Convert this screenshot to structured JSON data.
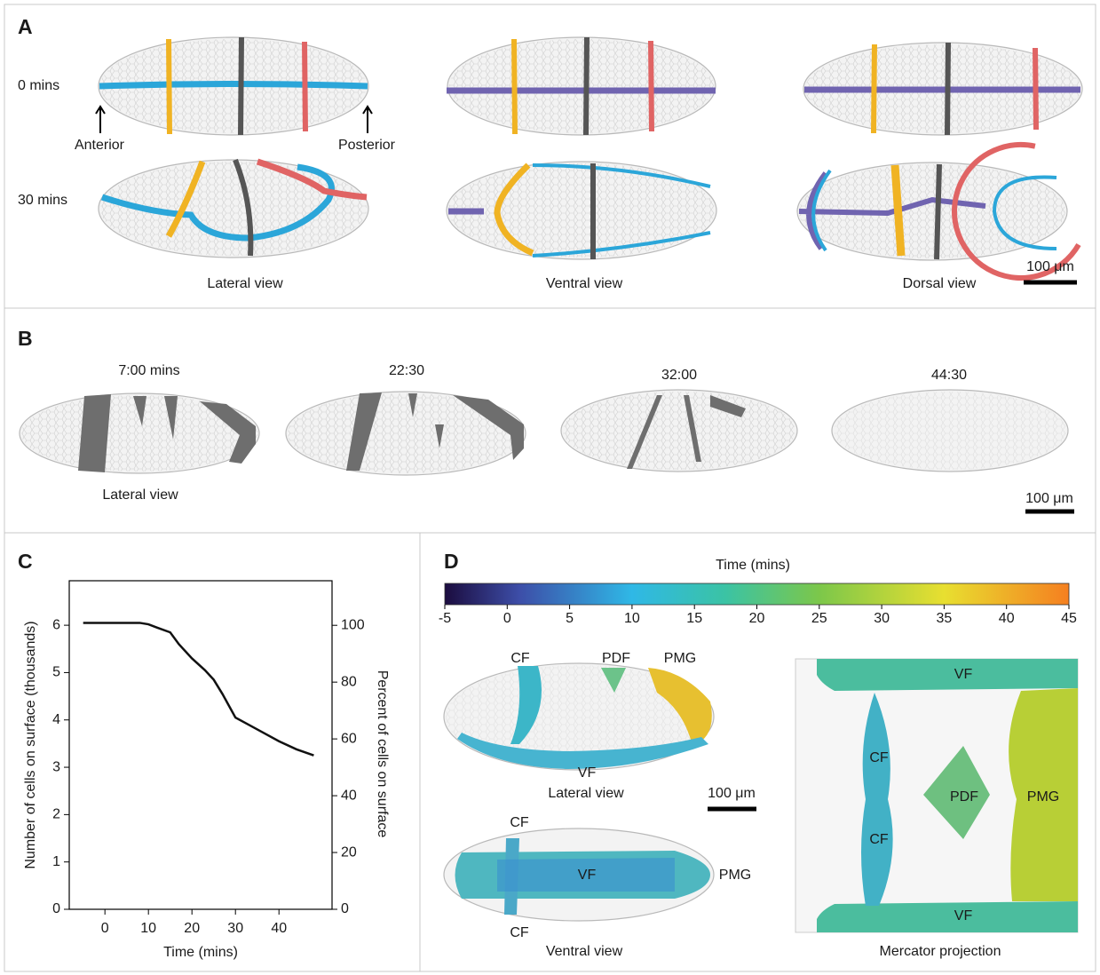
{
  "panel_a": {
    "letter": "A",
    "row_labels": [
      "0 mins",
      "30 mins"
    ],
    "anterior": "Anterior",
    "posterior": "Posterior",
    "views": [
      "Lateral view",
      "Ventral view",
      "Dorsal view"
    ],
    "scale_bar": "100 μm"
  },
  "panel_b": {
    "letter": "B",
    "times": [
      "7:00 mins",
      "22:30",
      "32:00",
      "44:30"
    ],
    "view": "Lateral view",
    "scale_bar": "100 μm"
  },
  "chart_data": {
    "type": "line",
    "panel_label": "C",
    "x": [
      -5,
      0,
      5,
      8,
      10,
      12,
      15,
      17,
      20,
      23,
      25,
      27,
      30,
      33,
      36,
      40,
      44,
      48
    ],
    "values": [
      6.05,
      6.05,
      6.05,
      6.05,
      6.02,
      5.95,
      5.85,
      5.6,
      5.3,
      5.05,
      4.85,
      4.55,
      4.05,
      3.9,
      3.75,
      3.55,
      3.38,
      3.25
    ],
    "color": "#111111",
    "xlim": [
      -8.2,
      52.2
    ],
    "ylim": [
      0,
      6.94
    ],
    "y2lim": [
      0,
      115.7
    ],
    "xticks": [
      0,
      10,
      20,
      30,
      40
    ],
    "yticks": [
      0,
      1,
      2,
      3,
      4,
      5,
      6
    ],
    "y2ticks": [
      0,
      20,
      40,
      60,
      80,
      100
    ],
    "xlabel": "Time (mins)",
    "ylabel": "Number of cells on surface (thousands)",
    "y2label": "Percent of cells on surface"
  },
  "panel_d": {
    "letter": "D",
    "colorbar": {
      "label": "Time (mins)",
      "lim": [
        -5,
        45
      ],
      "ticks": [
        -5,
        0,
        5,
        10,
        15,
        20,
        25,
        30,
        35,
        40,
        45
      ]
    },
    "lateral": {
      "labels": [
        "CF",
        "PDF",
        "PMG",
        "VF"
      ],
      "view": "Lateral view"
    },
    "scale_bar": "100 μm",
    "ventral": {
      "labels": [
        "CF",
        "VF",
        "PMG",
        "CF"
      ],
      "view": "Ventral view"
    },
    "mercator": {
      "labels": [
        "VF",
        "CF",
        "PDF",
        "PMG",
        "CF",
        "VF"
      ],
      "view": "Mercator projection"
    }
  }
}
